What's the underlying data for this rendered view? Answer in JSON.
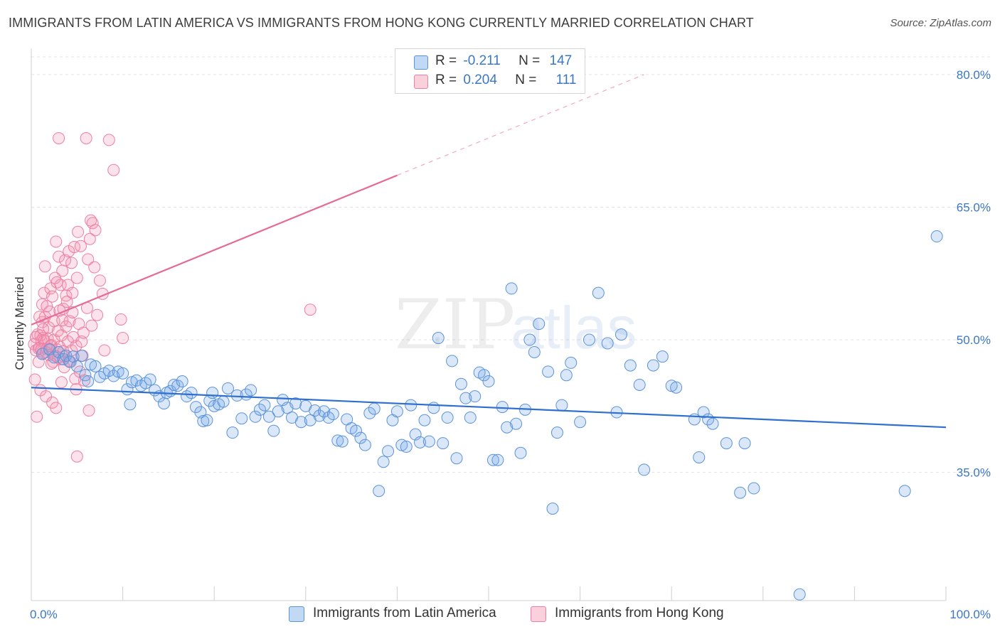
{
  "title": "IMMIGRANTS FROM LATIN AMERICA VS IMMIGRANTS FROM HONG KONG CURRENTLY MARRIED CORRELATION CHART",
  "source": "Source: ZipAtlas.com",
  "watermark": {
    "zip": "ZIP",
    "atlas": "atlas"
  },
  "legend": {
    "r_label": "R =",
    "n_label": "N =",
    "series1": {
      "r": "-0.211",
      "n": "147"
    },
    "series2": {
      "r": "0.204",
      "n": "111"
    }
  },
  "colors": {
    "blue_fill": "rgba(120,170,235,0.28)",
    "blue_stroke": "#5b93d9",
    "blue_line": "#2f6fcf",
    "pink_fill": "rgba(245,150,180,0.28)",
    "pink_stroke": "#ec7fa3",
    "pink_line": "#e56b96",
    "axis_text": "#3a77c4",
    "grid": "#e3e3e3"
  },
  "chart_data": {
    "type": "scatter",
    "title": "IMMIGRANTS FROM LATIN AMERICA VS IMMIGRANTS FROM HONG KONG CURRENTLY MARRIED CORRELATION CHART",
    "xlabel": "",
    "ylabel": "Currently Married",
    "xlim": [
      0,
      100
    ],
    "ylim": [
      20.5,
      82
    ],
    "x_tick_labels": [
      {
        "value": 0,
        "label": "0.0%"
      },
      {
        "value": 100,
        "label": "100.0%"
      }
    ],
    "x_minor_ticks": [
      10,
      20,
      30,
      40,
      50,
      60,
      70,
      80,
      90,
      100
    ],
    "y_ticks": [
      {
        "value": 35,
        "label": "35.0%"
      },
      {
        "value": 50,
        "label": "50.0%"
      },
      {
        "value": 65,
        "label": "65.0%"
      },
      {
        "value": 80,
        "label": "80.0%"
      }
    ],
    "grid": true,
    "legend_position": "top-center",
    "series": [
      {
        "name": "Immigrants from Latin America",
        "color": "blue",
        "trend": {
          "x0": 0,
          "y0": 44.6,
          "x1": 100,
          "y1": 40.1
        },
        "points": [
          [
            1.2,
            48.4
          ],
          [
            2.0,
            48.9
          ],
          [
            2.5,
            48.0
          ],
          [
            3.0,
            48.6
          ],
          [
            3.5,
            47.8
          ],
          [
            3.8,
            48.2
          ],
          [
            4.2,
            47.5
          ],
          [
            4.6,
            48.1
          ],
          [
            5.0,
            47.0
          ],
          [
            5.5,
            48.2
          ],
          [
            5.9,
            46.0
          ],
          [
            6.2,
            45.3
          ],
          [
            6.5,
            47.2
          ],
          [
            7.0,
            47.0
          ],
          [
            7.5,
            45.8
          ],
          [
            8.0,
            46.2
          ],
          [
            8.5,
            46.5
          ],
          [
            9.0,
            45.9
          ],
          [
            9.5,
            46.4
          ],
          [
            10.0,
            46.2
          ],
          [
            10.5,
            44.4
          ],
          [
            10.8,
            42.7
          ],
          [
            11.0,
            45.2
          ],
          [
            11.5,
            45.4
          ],
          [
            12.0,
            44.8
          ],
          [
            12.5,
            45.1
          ],
          [
            13.0,
            45.5
          ],
          [
            13.5,
            44.3
          ],
          [
            14.0,
            43.6
          ],
          [
            14.5,
            42.8
          ],
          [
            14.8,
            44.0
          ],
          [
            15.2,
            44.2
          ],
          [
            15.6,
            44.9
          ],
          [
            16.0,
            44.8
          ],
          [
            16.5,
            45.3
          ],
          [
            17.0,
            43.6
          ],
          [
            17.5,
            44.0
          ],
          [
            18.0,
            42.4
          ],
          [
            18.5,
            41.8
          ],
          [
            18.8,
            40.8
          ],
          [
            19.2,
            40.9
          ],
          [
            19.5,
            43.1
          ],
          [
            19.8,
            44.0
          ],
          [
            20.0,
            42.5
          ],
          [
            20.5,
            42.7
          ],
          [
            21.0,
            43.0
          ],
          [
            21.5,
            44.5
          ],
          [
            22.0,
            39.5
          ],
          [
            22.5,
            43.7
          ],
          [
            23.0,
            41.1
          ],
          [
            23.5,
            43.8
          ],
          [
            24.0,
            44.3
          ],
          [
            24.5,
            41.3
          ],
          [
            25.0,
            42.1
          ],
          [
            25.5,
            42.6
          ],
          [
            26.0,
            41.3
          ],
          [
            26.5,
            39.7
          ],
          [
            27.0,
            41.9
          ],
          [
            27.5,
            43.2
          ],
          [
            28.0,
            42.3
          ],
          [
            28.5,
            41.2
          ],
          [
            28.9,
            42.8
          ],
          [
            29.5,
            40.7
          ],
          [
            30.0,
            42.5
          ],
          [
            30.5,
            40.9
          ],
          [
            31.0,
            42.0
          ],
          [
            31.5,
            41.4
          ],
          [
            32.0,
            41.9
          ],
          [
            32.5,
            41.2
          ],
          [
            33.0,
            41.6
          ],
          [
            33.5,
            38.6
          ],
          [
            34.0,
            38.5
          ],
          [
            34.5,
            41.0
          ],
          [
            35.0,
            40.0
          ],
          [
            35.5,
            39.7
          ],
          [
            36.0,
            38.9
          ],
          [
            36.5,
            38.1
          ],
          [
            37.0,
            41.7
          ],
          [
            37.5,
            42.2
          ],
          [
            38.0,
            32.9
          ],
          [
            38.5,
            36.2
          ],
          [
            39.0,
            37.4
          ],
          [
            39.5,
            40.9
          ],
          [
            40.0,
            41.9
          ],
          [
            40.5,
            38.1
          ],
          [
            41.0,
            37.9
          ],
          [
            41.5,
            42.6
          ],
          [
            42.0,
            39.3
          ],
          [
            42.5,
            38.4
          ],
          [
            43.0,
            40.9
          ],
          [
            43.5,
            38.5
          ],
          [
            44.0,
            42.3
          ],
          [
            44.5,
            50.2
          ],
          [
            45.0,
            38.3
          ],
          [
            45.5,
            41.2
          ],
          [
            46.0,
            47.6
          ],
          [
            46.5,
            36.6
          ],
          [
            47.0,
            45.0
          ],
          [
            47.5,
            43.4
          ],
          [
            48.0,
            41.2
          ],
          [
            48.5,
            43.6
          ],
          [
            49.0,
            46.3
          ],
          [
            49.5,
            46.0
          ],
          [
            50.0,
            45.3
          ],
          [
            50.5,
            36.4
          ],
          [
            51.0,
            36.4
          ],
          [
            51.5,
            42.4
          ],
          [
            52.0,
            40.1
          ],
          [
            52.5,
            55.8
          ],
          [
            53.0,
            40.5
          ],
          [
            53.5,
            37.2
          ],
          [
            54.0,
            42.1
          ],
          [
            54.5,
            50.0
          ],
          [
            55.0,
            48.6
          ],
          [
            55.5,
            51.8
          ],
          [
            56.5,
            46.4
          ],
          [
            57.0,
            30.9
          ],
          [
            57.5,
            39.5
          ],
          [
            58.0,
            42.6
          ],
          [
            58.5,
            46.0
          ],
          [
            59.0,
            47.4
          ],
          [
            60.0,
            40.7
          ],
          [
            61.0,
            50.0
          ],
          [
            62.0,
            55.3
          ],
          [
            63.0,
            49.6
          ],
          [
            64.0,
            41.8
          ],
          [
            64.5,
            50.6
          ],
          [
            65.5,
            47.1
          ],
          [
            66.5,
            44.9
          ],
          [
            67.0,
            35.3
          ],
          [
            68.0,
            47.1
          ],
          [
            69.0,
            48.1
          ],
          [
            70.0,
            44.8
          ],
          [
            70.5,
            44.6
          ],
          [
            72.5,
            41.0
          ],
          [
            73.0,
            36.7
          ],
          [
            73.5,
            41.8
          ],
          [
            74.0,
            41.0
          ],
          [
            74.5,
            40.5
          ],
          [
            76.0,
            38.3
          ],
          [
            77.5,
            32.7
          ],
          [
            78.0,
            38.3
          ],
          [
            79.0,
            33.2
          ],
          [
            84.0,
            21.2
          ],
          [
            95.5,
            32.9
          ],
          [
            99.0,
            61.7
          ]
        ]
      },
      {
        "name": "Immigrants from Hong Kong",
        "color": "pink",
        "trend": {
          "x0": 0,
          "y0": 51.7,
          "x1": 40,
          "y1": 68.6,
          "dashed_to": {
            "x": 67,
            "y": 80
          }
        },
        "points": [
          [
            0.3,
            49.5
          ],
          [
            0.4,
            45.5
          ],
          [
            0.5,
            48.8
          ],
          [
            0.6,
            41.3
          ],
          [
            0.7,
            50.6
          ],
          [
            0.8,
            47.5
          ],
          [
            0.9,
            49.1
          ],
          [
            1.0,
            44.3
          ],
          [
            1.0,
            50.5
          ],
          [
            1.1,
            49.9
          ],
          [
            1.2,
            54.0
          ],
          [
            1.2,
            52.0
          ],
          [
            1.3,
            48.5
          ],
          [
            1.3,
            50.2
          ],
          [
            1.4,
            55.3
          ],
          [
            1.5,
            58.3
          ],
          [
            1.5,
            52.6
          ],
          [
            1.6,
            43.6
          ],
          [
            1.7,
            49.0
          ],
          [
            1.8,
            50.1
          ],
          [
            1.9,
            51.4
          ],
          [
            2.0,
            49.0
          ],
          [
            2.0,
            53.2
          ],
          [
            2.1,
            55.8
          ],
          [
            2.2,
            49.4
          ],
          [
            2.3,
            42.9
          ],
          [
            2.4,
            47.5
          ],
          [
            2.5,
            52.1
          ],
          [
            2.5,
            50.0
          ],
          [
            2.6,
            57.0
          ],
          [
            2.7,
            61.1
          ],
          [
            2.7,
            42.3
          ],
          [
            2.8,
            48.9
          ],
          [
            2.9,
            51.0
          ],
          [
            3.0,
            72.8
          ],
          [
            3.0,
            59.4
          ],
          [
            3.1,
            53.3
          ],
          [
            3.1,
            49.2
          ],
          [
            3.2,
            56.2
          ],
          [
            3.3,
            45.2
          ],
          [
            3.3,
            50.5
          ],
          [
            3.4,
            52.2
          ],
          [
            3.5,
            53.5
          ],
          [
            3.5,
            48.7
          ],
          [
            3.6,
            46.9
          ],
          [
            3.7,
            59.0
          ],
          [
            3.8,
            55.0
          ],
          [
            3.8,
            51.5
          ],
          [
            3.9,
            54.3
          ],
          [
            4.0,
            56.2
          ],
          [
            4.0,
            49.8
          ],
          [
            4.1,
            60.0
          ],
          [
            4.2,
            52.1
          ],
          [
            4.3,
            47.5
          ],
          [
            4.4,
            48.8
          ],
          [
            4.5,
            55.3
          ],
          [
            4.5,
            53.1
          ],
          [
            4.6,
            50.3
          ],
          [
            4.7,
            60.5
          ],
          [
            4.8,
            45.6
          ],
          [
            4.9,
            49.3
          ],
          [
            5.0,
            57.0
          ],
          [
            5.0,
            36.8
          ],
          [
            5.1,
            62.2
          ],
          [
            5.2,
            51.8
          ],
          [
            5.3,
            46.4
          ],
          [
            5.5,
            49.8
          ],
          [
            5.6,
            48.2
          ],
          [
            5.7,
            50.8
          ],
          [
            5.8,
            45.4
          ],
          [
            6.0,
            72.8
          ],
          [
            6.1,
            53.6
          ],
          [
            6.2,
            59.1
          ],
          [
            6.3,
            42.0
          ],
          [
            6.5,
            63.5
          ],
          [
            6.6,
            51.6
          ],
          [
            6.7,
            63.2
          ],
          [
            7.0,
            62.4
          ],
          [
            7.2,
            52.8
          ],
          [
            7.5,
            56.7
          ],
          [
            8.0,
            48.8
          ],
          [
            8.5,
            72.6
          ],
          [
            9.0,
            69.2
          ],
          [
            10.0,
            50.2
          ],
          [
            30.5,
            53.4
          ],
          [
            0.8,
            49.0
          ],
          [
            1.4,
            49.9
          ],
          [
            1.9,
            48.3
          ],
          [
            2.2,
            47.3
          ],
          [
            2.6,
            48.2
          ],
          [
            3.2,
            47.8
          ],
          [
            3.6,
            48.1
          ],
          [
            4.1,
            47.6
          ],
          [
            1.1,
            48.9
          ],
          [
            1.6,
            48.6
          ],
          [
            2.1,
            49.3
          ],
          [
            2.9,
            48.0
          ],
          [
            0.5,
            50.3
          ],
          [
            0.9,
            52.6
          ],
          [
            1.3,
            51.2
          ],
          [
            1.7,
            53.8
          ],
          [
            2.3,
            54.9
          ],
          [
            2.8,
            56.5
          ],
          [
            3.4,
            57.8
          ],
          [
            4.4,
            58.7
          ],
          [
            5.4,
            60.6
          ],
          [
            6.4,
            61.4
          ],
          [
            6.9,
            58.2
          ],
          [
            7.8,
            55.2
          ],
          [
            9.8,
            52.3
          ],
          [
            4.9,
            44.4
          ]
        ]
      }
    ]
  },
  "bottom_legend": {
    "item1": "Immigrants from Latin America",
    "item2": "Immigrants from Hong Kong"
  }
}
